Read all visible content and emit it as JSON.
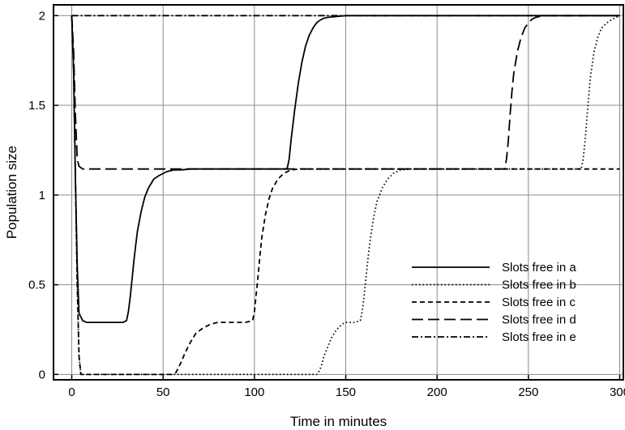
{
  "chart_data": {
    "type": "line",
    "title": "",
    "xlabel": "Time in minutes",
    "ylabel": "Population size",
    "xlim": [
      -10,
      302
    ],
    "ylim": [
      -0.03,
      2.06
    ],
    "xticks": [
      0,
      50,
      100,
      150,
      200,
      250,
      300
    ],
    "yticks": [
      0,
      0.5,
      1,
      1.5,
      2
    ],
    "xtick_labels": [
      "0",
      "50",
      "100",
      "150",
      "200",
      "250",
      "300"
    ],
    "ytick_labels": [
      "0",
      "0.5",
      "1",
      "1.5",
      "2"
    ],
    "grid": true,
    "legend_position": "bottom-right",
    "series": [
      {
        "name": "Slots free in a",
        "dash": "solid",
        "x": [
          0,
          1,
          2,
          3,
          4,
          5,
          6,
          8,
          10,
          15,
          20,
          25,
          28,
          30,
          31,
          32,
          33,
          34,
          35,
          36,
          38,
          40,
          42,
          45,
          48,
          52,
          56,
          60,
          65,
          70,
          80,
          90,
          100,
          110,
          117,
          118,
          119,
          120,
          122,
          124,
          126,
          128,
          130,
          132,
          134,
          136,
          138,
          140,
          145,
          150,
          160,
          180,
          200,
          250,
          300
        ],
        "y": [
          2.0,
          1.7,
          1.1,
          0.6,
          0.34,
          0.32,
          0.3,
          0.29,
          0.29,
          0.29,
          0.29,
          0.29,
          0.29,
          0.3,
          0.35,
          0.43,
          0.53,
          0.63,
          0.72,
          0.8,
          0.91,
          0.99,
          1.04,
          1.09,
          1.11,
          1.13,
          1.14,
          1.14,
          1.145,
          1.145,
          1.145,
          1.145,
          1.145,
          1.145,
          1.145,
          1.15,
          1.2,
          1.3,
          1.47,
          1.62,
          1.74,
          1.83,
          1.89,
          1.93,
          1.96,
          1.975,
          1.985,
          1.99,
          1.995,
          2.0,
          2.0,
          2.0,
          2.0,
          2.0,
          2.0
        ]
      },
      {
        "name": "Slots free in b",
        "dash": "dotted",
        "x": [
          0,
          1,
          2,
          3,
          4,
          5,
          10,
          20,
          50,
          100,
          120,
          130,
          134,
          135,
          136,
          137,
          138,
          140,
          142,
          145,
          148,
          150,
          155,
          158,
          159,
          160,
          161,
          162,
          163,
          165,
          167,
          170,
          173,
          176,
          180,
          185,
          190,
          200,
          220,
          250,
          270,
          278,
          279,
          280,
          281,
          282,
          283,
          284,
          286,
          288,
          290,
          293,
          296,
          300
        ],
        "y": [
          2.0,
          1.7,
          1.1,
          0.5,
          0.1,
          0.0,
          0.0,
          0.0,
          0.0,
          0.0,
          0.0,
          0.0,
          0.0,
          0.01,
          0.03,
          0.06,
          0.1,
          0.15,
          0.2,
          0.25,
          0.28,
          0.29,
          0.29,
          0.3,
          0.35,
          0.43,
          0.53,
          0.63,
          0.72,
          0.86,
          0.96,
          1.04,
          1.09,
          1.12,
          1.14,
          1.145,
          1.145,
          1.145,
          1.145,
          1.145,
          1.145,
          1.145,
          1.15,
          1.2,
          1.3,
          1.42,
          1.55,
          1.66,
          1.8,
          1.88,
          1.93,
          1.96,
          1.98,
          2.0
        ]
      },
      {
        "name": "Slots free in c",
        "dash": "short-dash",
        "x": [
          0,
          1,
          2,
          3,
          4,
          5,
          10,
          20,
          40,
          55,
          57,
          58,
          60,
          62,
          65,
          68,
          72,
          76,
          80,
          85,
          90,
          95,
          99,
          100,
          101,
          102,
          103,
          104,
          106,
          108,
          110,
          113,
          116,
          120,
          125,
          130,
          140,
          150,
          200,
          250,
          300
        ],
        "y": [
          2.0,
          1.7,
          1.1,
          0.5,
          0.1,
          0.0,
          0.0,
          0.0,
          0.0,
          0.0,
          0.01,
          0.03,
          0.07,
          0.12,
          0.18,
          0.23,
          0.26,
          0.28,
          0.29,
          0.29,
          0.29,
          0.29,
          0.3,
          0.35,
          0.45,
          0.55,
          0.66,
          0.76,
          0.89,
          0.98,
          1.04,
          1.09,
          1.12,
          1.14,
          1.145,
          1.145,
          1.145,
          1.145,
          1.145,
          1.145,
          1.145
        ]
      },
      {
        "name": "Slots free in d",
        "dash": "long-dash",
        "x": [
          0,
          1,
          2,
          3,
          4,
          6,
          10,
          20,
          50,
          100,
          150,
          200,
          230,
          237,
          238,
          239,
          240,
          241,
          242,
          244,
          246,
          248,
          250,
          252,
          254,
          256,
          260,
          265,
          270,
          300
        ],
        "y": [
          2.0,
          1.8,
          1.45,
          1.2,
          1.16,
          1.145,
          1.145,
          1.145,
          1.145,
          1.145,
          1.145,
          1.145,
          1.145,
          1.145,
          1.2,
          1.3,
          1.45,
          1.58,
          1.68,
          1.8,
          1.88,
          1.93,
          1.96,
          1.98,
          1.99,
          1.995,
          2.0,
          2.0,
          2.0,
          2.0
        ]
      },
      {
        "name": "Slots free in e",
        "dash": "dash-dot",
        "x": [
          0,
          300
        ],
        "y": [
          2.0,
          2.0
        ]
      }
    ]
  }
}
